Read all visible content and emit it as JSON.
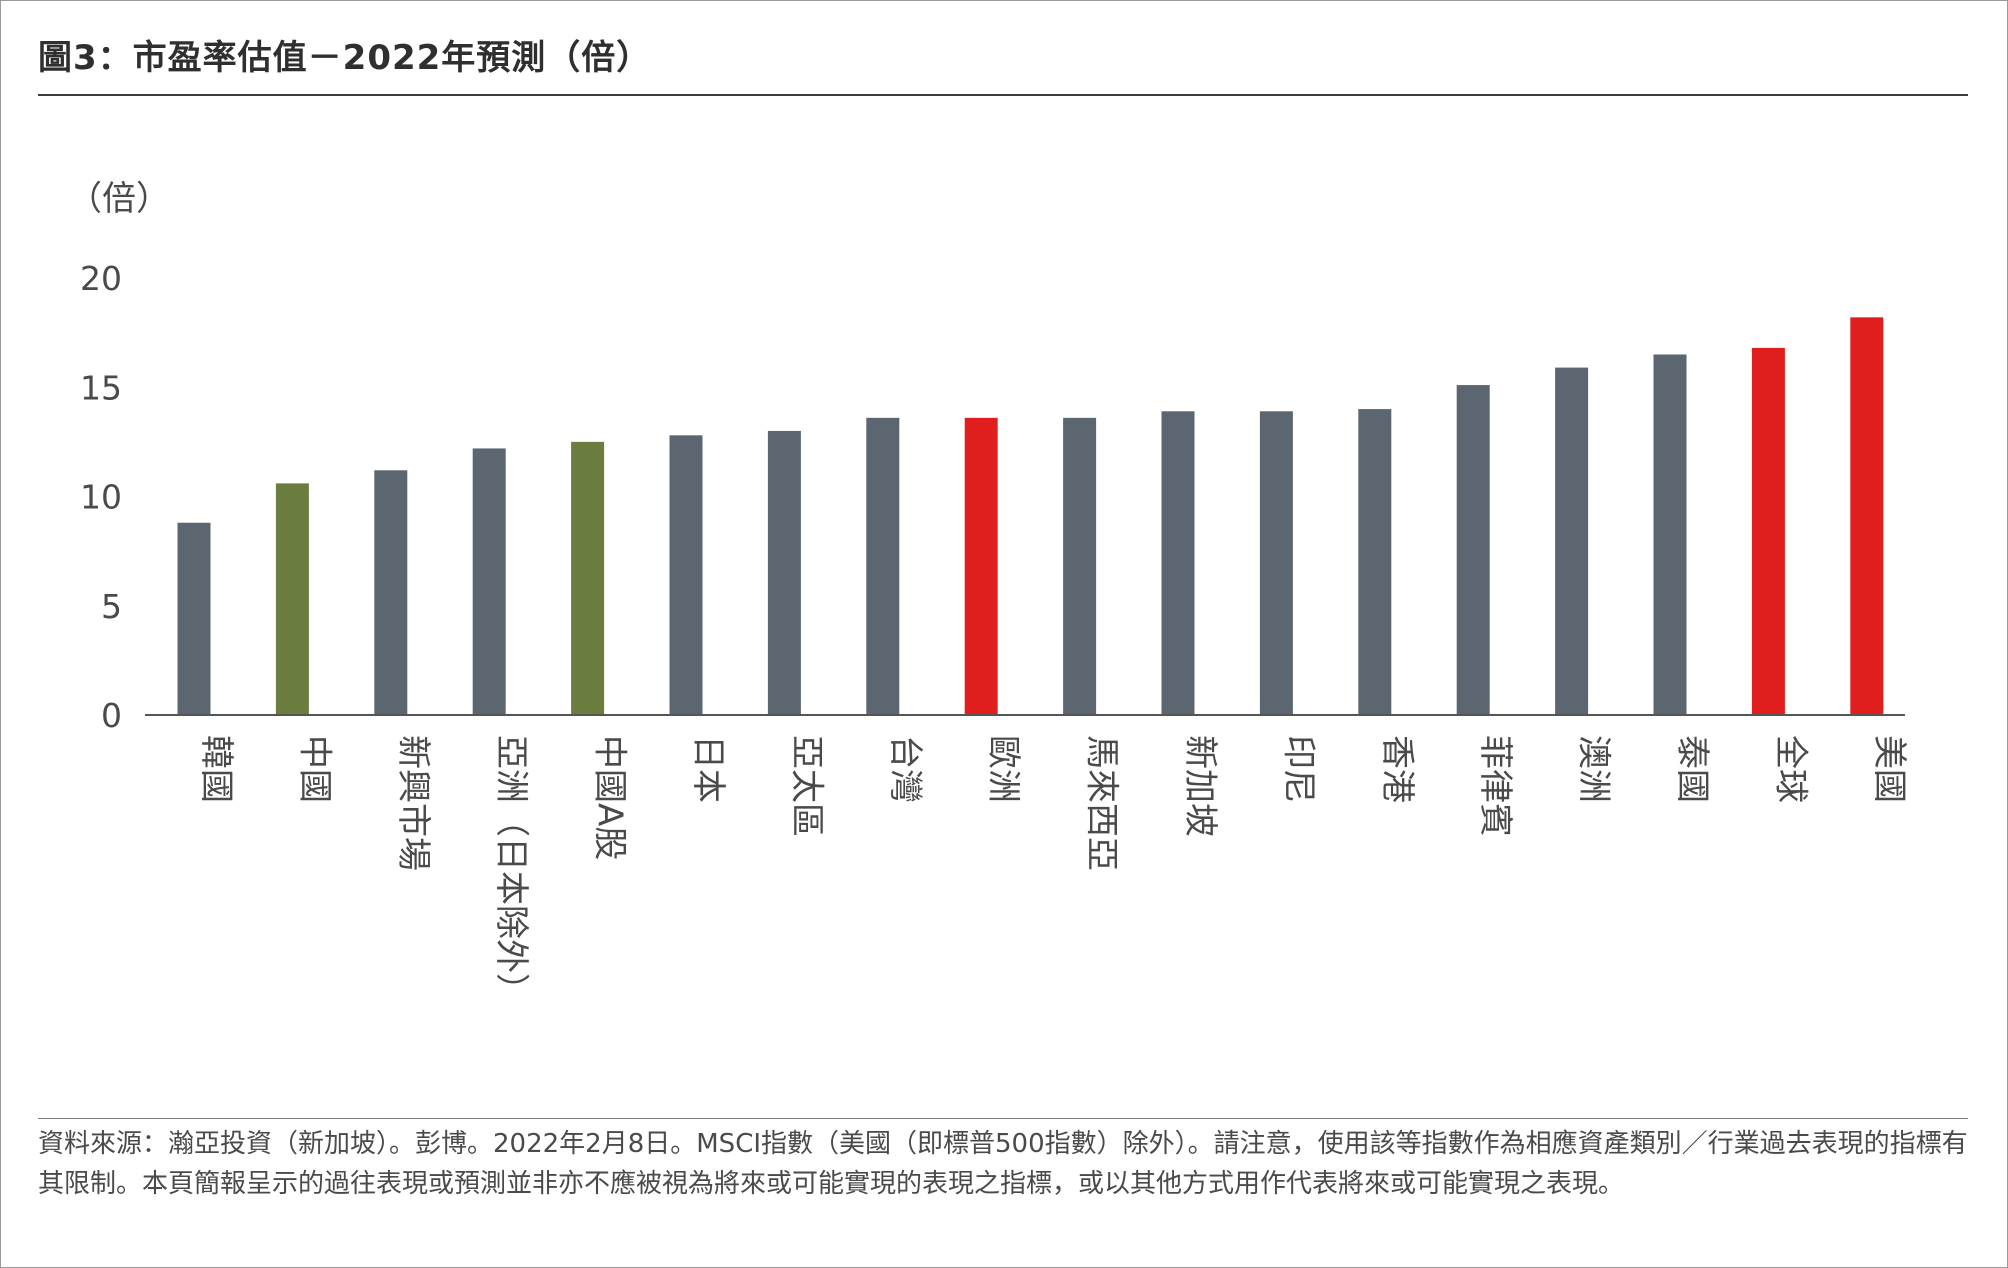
{
  "title": "圖3：市盈率估值－2022年預測（倍）",
  "source_note": "資料來源：瀚亞投資（新加坡）。彭博。2022年2月8日。MSCI指數（美國（即標普500指數）除外）。請注意，使用該等指數作為相應資產類別／行業過去表現的指標有其限制。本頁簡報呈示的過往表現或預測並非亦不應被視為將來或可能實現的表現之指標，或以其他方式用作代表將來或可能實現之表現。",
  "colors": {
    "default": "#5b6670",
    "china": "#6b7d3e",
    "highlight": "#e01e1e",
    "axis": "#555555",
    "text": "#4a4a4a"
  },
  "chart_data": {
    "type": "bar",
    "ylabel": "（倍）",
    "ylim": [
      0,
      20
    ],
    "yticks": [
      0,
      5,
      10,
      15,
      20
    ],
    "grid": false,
    "categories": [
      "韓國",
      "中國",
      "新興市場",
      "亞洲（日本除外）",
      "中國A股",
      "日本",
      "亞太區",
      "台灣",
      "歐洲",
      "馬來西亞",
      "新加坡",
      "印尼",
      "香港",
      "菲律賓",
      "澳洲",
      "泰國",
      "全球",
      "美國"
    ],
    "values": [
      8.8,
      10.6,
      11.2,
      12.2,
      12.5,
      12.8,
      13.0,
      13.6,
      13.6,
      13.6,
      13.9,
      13.9,
      14.0,
      15.1,
      15.9,
      16.5,
      16.8,
      18.2
    ],
    "bar_colors": [
      "default",
      "china",
      "default",
      "default",
      "china",
      "default",
      "default",
      "default",
      "highlight",
      "default",
      "default",
      "default",
      "default",
      "default",
      "default",
      "default",
      "highlight",
      "highlight"
    ]
  }
}
